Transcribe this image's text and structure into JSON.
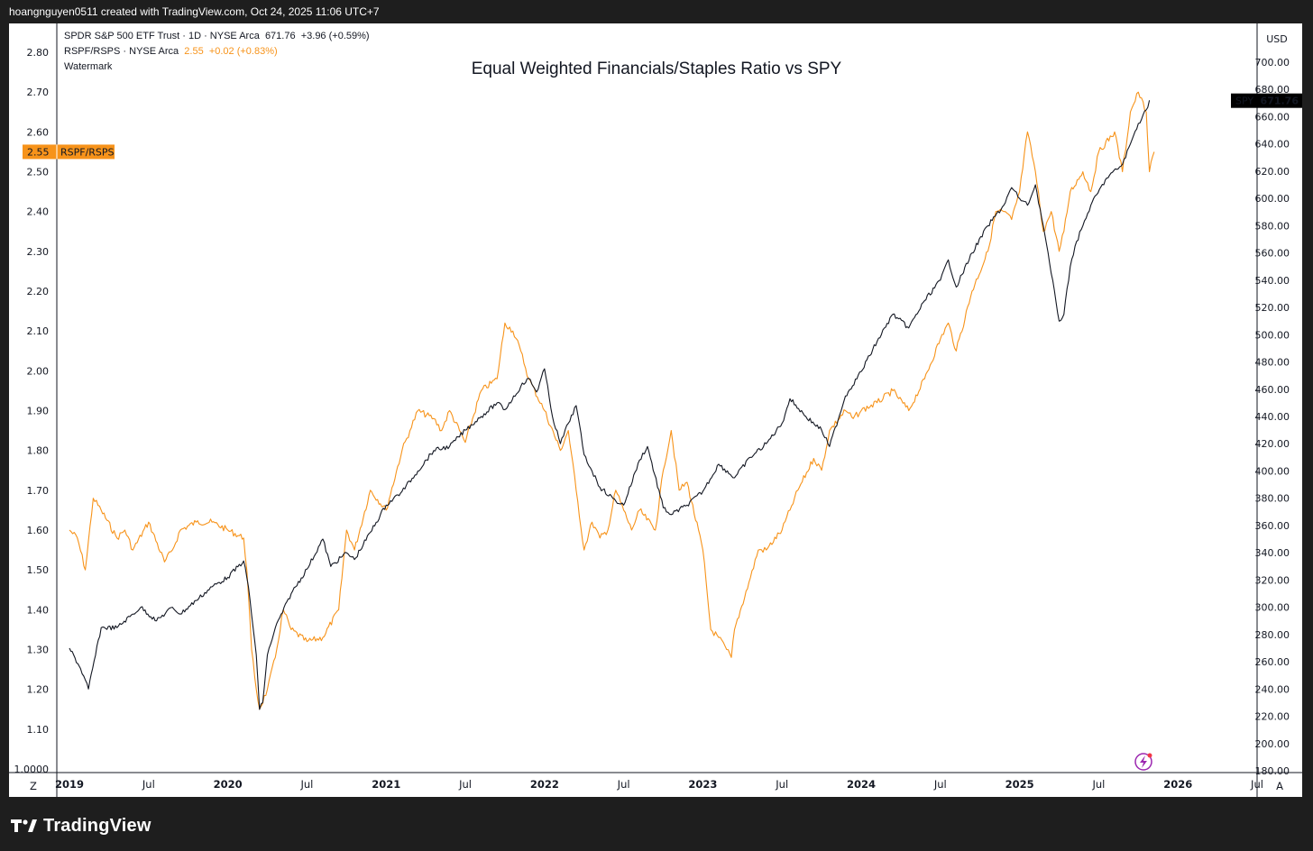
{
  "header": {
    "author_line": "hoangnguyen0511 created with TradingView.com, Oct 24, 2025 11:06 UTC+7"
  },
  "legend": {
    "spy_name": "SPDR S&P 500 ETF Trust · 1D · NYSE Arca",
    "spy_price": "671.76",
    "spy_change": "+3.96 (+0.59%)",
    "ratio_name": "RSPF/RSPS · NYSE Arca",
    "ratio_price": "2.55",
    "ratio_change": "+0.02 (+0.83%)",
    "watermark": "Watermark"
  },
  "footer": {
    "brand": "TradingView"
  },
  "chart_data": {
    "type": "line",
    "title": "Equal Weighted Financials/Staples Ratio vs SPY",
    "currency_label": "USD",
    "left_axis": {
      "ticks": [
        "2.80",
        "2.70",
        "2.60",
        "2.50",
        "2.40",
        "2.30",
        "2.20",
        "2.10",
        "2.00",
        "1.90",
        "1.80",
        "1.70",
        "1.60",
        "1.50",
        "1.40",
        "1.30",
        "1.20",
        "1.10",
        "1.0000"
      ],
      "ylim": [
        1.0,
        2.8
      ]
    },
    "right_axis": {
      "ticks": [
        "700.00",
        "680.00",
        "660.00",
        "640.00",
        "620.00",
        "600.00",
        "580.00",
        "560.00",
        "540.00",
        "520.00",
        "500.00",
        "480.00",
        "460.00",
        "440.00",
        "420.00",
        "400.00",
        "380.00",
        "360.00",
        "340.00",
        "320.00",
        "300.00",
        "280.00",
        "260.00",
        "240.00",
        "220.00",
        "200.00",
        "180.00"
      ],
      "ylim": [
        180,
        700
      ]
    },
    "x_ticks": [
      "2019",
      "Jul",
      "2020",
      "Jul",
      "2021",
      "Jul",
      "2022",
      "Jul",
      "2023",
      "Jul",
      "2024",
      "Jul",
      "2025",
      "Jul",
      "2026",
      "Jul"
    ],
    "x_ticks_t": [
      2019.0,
      2019.5,
      2020.0,
      2020.5,
      2021.0,
      2021.5,
      2022.0,
      2022.5,
      2023.0,
      2023.5,
      2024.0,
      2024.5,
      2025.0,
      2025.5,
      2026.0,
      2026.5
    ],
    "x_range": [
      2018.92,
      2026.5
    ],
    "corner_left": "Z",
    "corner_right": "A",
    "series": [
      {
        "name": "SPY",
        "axis": "right",
        "color": "#131722",
        "last_label": "SPY",
        "last_value": "671.76",
        "t": [
          2019.0,
          2019.07,
          2019.12,
          2019.2,
          2019.3,
          2019.4,
          2019.45,
          2019.55,
          2019.65,
          2019.7,
          2019.8,
          2019.9,
          2020.0,
          2020.1,
          2020.13,
          2020.18,
          2020.2,
          2020.22,
          2020.25,
          2020.3,
          2020.4,
          2020.5,
          2020.6,
          2020.65,
          2020.75,
          2020.8,
          2020.9,
          2021.0,
          2021.1,
          2021.2,
          2021.3,
          2021.4,
          2021.5,
          2021.6,
          2021.7,
          2021.75,
          2021.85,
          2021.9,
          2021.95,
          2022.0,
          2022.05,
          2022.1,
          2022.15,
          2022.2,
          2022.25,
          2022.3,
          2022.35,
          2022.45,
          2022.5,
          2022.6,
          2022.65,
          2022.75,
          2022.8,
          2022.9,
          2023.0,
          2023.1,
          2023.2,
          2023.3,
          2023.4,
          2023.5,
          2023.55,
          2023.65,
          2023.75,
          2023.8,
          2023.9,
          2024.0,
          2024.1,
          2024.2,
          2024.3,
          2024.4,
          2024.5,
          2024.55,
          2024.6,
          2024.7,
          2024.8,
          2024.9,
          2024.95,
          2025.0,
          2025.05,
          2025.1,
          2025.15,
          2025.2,
          2025.25,
          2025.28,
          2025.32,
          2025.35,
          2025.4,
          2025.45,
          2025.55,
          2025.65,
          2025.7,
          2025.75,
          2025.8,
          2025.82
        ],
        "v": [
          270,
          255,
          240,
          285,
          285,
          295,
          300,
          290,
          300,
          295,
          305,
          315,
          322,
          334,
          315,
          265,
          225,
          230,
          265,
          285,
          310,
          328,
          350,
          330,
          340,
          335,
          355,
          375,
          385,
          400,
          415,
          418,
          430,
          440,
          450,
          445,
          462,
          468,
          458,
          475,
          440,
          420,
          435,
          448,
          412,
          400,
          388,
          378,
          375,
          408,
          418,
          373,
          368,
          375,
          385,
          405,
          395,
          410,
          420,
          435,
          453,
          440,
          430,
          418,
          455,
          473,
          495,
          515,
          505,
          525,
          540,
          555,
          535,
          560,
          580,
          595,
          608,
          600,
          595,
          610,
          580,
          545,
          510,
          515,
          550,
          565,
          580,
          595,
          615,
          625,
          640,
          655,
          665,
          672
        ]
      },
      {
        "name": "RSPF/RSPS",
        "axis": "left",
        "color": "#f7931a",
        "last_label": "RSPF/RSPS",
        "last_value": "2.55",
        "t": [
          2019.0,
          2019.05,
          2019.1,
          2019.15,
          2019.2,
          2019.3,
          2019.35,
          2019.4,
          2019.5,
          2019.6,
          2019.65,
          2019.7,
          2019.8,
          2019.9,
          2020.0,
          2020.1,
          2020.12,
          2020.15,
          2020.18,
          2020.2,
          2020.25,
          2020.3,
          2020.35,
          2020.4,
          2020.5,
          2020.6,
          2020.7,
          2020.75,
          2020.8,
          2020.9,
          2021.0,
          2021.1,
          2021.15,
          2021.2,
          2021.3,
          2021.35,
          2021.4,
          2021.5,
          2021.6,
          2021.7,
          2021.75,
          2021.8,
          2021.85,
          2021.9,
          2022.0,
          2022.1,
          2022.15,
          2022.2,
          2022.25,
          2022.3,
          2022.35,
          2022.4,
          2022.45,
          2022.5,
          2022.55,
          2022.6,
          2022.7,
          2022.75,
          2022.8,
          2022.85,
          2022.9,
          2023.0,
          2023.05,
          2023.1,
          2023.15,
          2023.18,
          2023.2,
          2023.3,
          2023.35,
          2023.4,
          2023.5,
          2023.55,
          2023.6,
          2023.7,
          2023.75,
          2023.8,
          2023.9,
          2023.95,
          2024.0,
          2024.1,
          2024.2,
          2024.3,
          2024.4,
          2024.5,
          2024.55,
          2024.6,
          2024.7,
          2024.8,
          2024.85,
          2024.9,
          2024.95,
          2025.0,
          2025.05,
          2025.1,
          2025.15,
          2025.2,
          2025.25,
          2025.28,
          2025.32,
          2025.4,
          2025.45,
          2025.5,
          2025.6,
          2025.65,
          2025.7,
          2025.75,
          2025.8,
          2025.82,
          2025.85
        ],
        "v": [
          1.6,
          1.58,
          1.5,
          1.68,
          1.65,
          1.58,
          1.6,
          1.55,
          1.62,
          1.52,
          1.55,
          1.6,
          1.62,
          1.62,
          1.6,
          1.58,
          1.5,
          1.3,
          1.2,
          1.15,
          1.2,
          1.28,
          1.4,
          1.35,
          1.32,
          1.33,
          1.4,
          1.6,
          1.55,
          1.7,
          1.65,
          1.8,
          1.85,
          1.9,
          1.88,
          1.85,
          1.9,
          1.82,
          1.95,
          1.98,
          2.12,
          2.1,
          2.05,
          1.98,
          1.9,
          1.8,
          1.85,
          1.7,
          1.55,
          1.62,
          1.58,
          1.6,
          1.7,
          1.65,
          1.6,
          1.65,
          1.6,
          1.75,
          1.85,
          1.7,
          1.72,
          1.55,
          1.35,
          1.33,
          1.3,
          1.28,
          1.35,
          1.48,
          1.55,
          1.55,
          1.6,
          1.65,
          1.7,
          1.78,
          1.75,
          1.85,
          1.9,
          1.88,
          1.9,
          1.92,
          1.95,
          1.9,
          1.98,
          2.08,
          2.12,
          2.05,
          2.2,
          2.3,
          2.4,
          2.4,
          2.38,
          2.45,
          2.6,
          2.5,
          2.35,
          2.4,
          2.3,
          2.35,
          2.45,
          2.5,
          2.45,
          2.55,
          2.6,
          2.5,
          2.65,
          2.7,
          2.65,
          2.5,
          2.55
        ]
      }
    ]
  }
}
